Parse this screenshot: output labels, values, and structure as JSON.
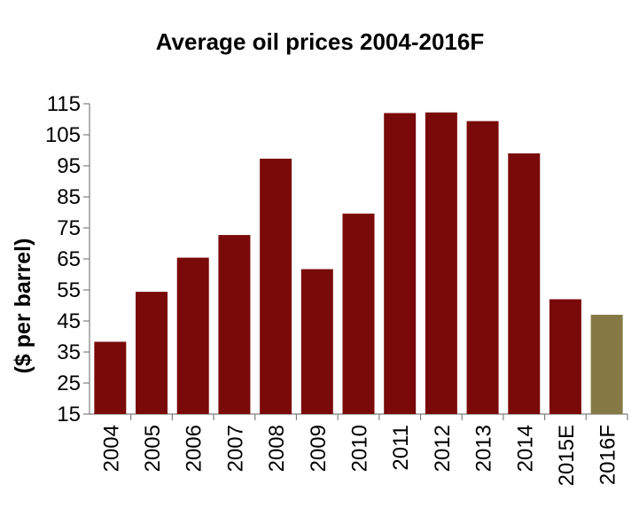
{
  "chart_data": {
    "type": "bar",
    "title": "Average oil prices 2004-2016F",
    "xlabel": "",
    "ylabel": "($ per barrel)",
    "categories": [
      "2004",
      "2005",
      "2006",
      "2007",
      "2008",
      "2009",
      "2010",
      "2011",
      "2012",
      "2013",
      "2014",
      "2015E",
      "2016F"
    ],
    "values": [
      38.3,
      54.4,
      65.4,
      72.7,
      97.3,
      61.7,
      79.6,
      112.0,
      112.2,
      109.4,
      99.0,
      52.0,
      47.0
    ],
    "ylim": [
      15,
      115
    ],
    "yticks": [
      15,
      25,
      35,
      45,
      55,
      65,
      75,
      85,
      95,
      105,
      115
    ],
    "grid": false,
    "legend": "none",
    "colors": {
      "actual": "#7a0a0a",
      "forecast": "#857945",
      "axis": "#7f7f7f"
    },
    "bar_colors": [
      "actual",
      "actual",
      "actual",
      "actual",
      "actual",
      "actual",
      "actual",
      "actual",
      "actual",
      "actual",
      "actual",
      "actual",
      "forecast"
    ]
  }
}
